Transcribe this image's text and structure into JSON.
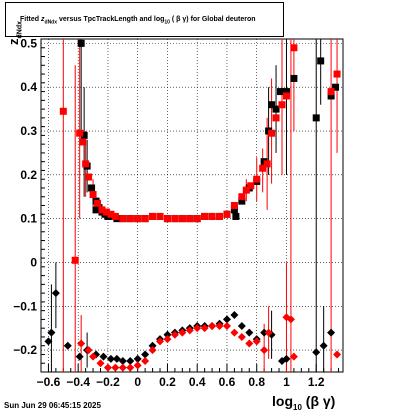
{
  "title": {
    "prefix": "Fitted",
    "z": "z",
    "z_sub": "dNdx",
    "middle": "versus TpcTrackLength and log",
    "log_sub": "10",
    "suffix": "( β γ) for Global deuteron"
  },
  "ylabel": {
    "main": "z",
    "sub": "dNdx"
  },
  "xlabel": {
    "main": "log",
    "sub": "10",
    "rest": "(β γ)"
  },
  "timestamp": "Sun Jun 29 06:45:15 2025",
  "colors": {
    "black_series": "#000000",
    "red_series": "#ff0000",
    "grid": "#000000"
  },
  "chart_data": {
    "type": "scatter",
    "xlim": [
      -0.65,
      1.38
    ],
    "ylim": [
      -0.25,
      0.51
    ],
    "x_ticks": [
      -0.6,
      -0.4,
      -0.2,
      0,
      0.2,
      0.4,
      0.6,
      0.8,
      1,
      1.2
    ],
    "x_tick_labels": [
      "−0.6",
      "−0.4",
      "−0.2",
      "0",
      "0.2",
      "0.4",
      "0.6",
      "0.8",
      "1",
      "1.2"
    ],
    "y_ticks": [
      -0.2,
      -0.1,
      0,
      0.1,
      0.2,
      0.3,
      0.4,
      0.5
    ],
    "y_tick_labels": [
      "−0.2",
      "−0.1",
      "0",
      "0.1",
      "0.2",
      "0.3",
      "0.4",
      "0.5"
    ],
    "grid": true,
    "series": [
      {
        "color": "black",
        "squares": [
          [
            -0.38,
            0.5
          ],
          [
            -0.36,
            0.29
          ],
          [
            -0.34,
            0.22
          ],
          [
            -0.31,
            0.17
          ],
          [
            -0.28,
            0.14
          ],
          [
            -0.26,
            0.125
          ],
          [
            -0.24,
            0.115
          ],
          [
            -0.22,
            0.11
          ],
          [
            -0.2,
            0.105
          ],
          [
            -0.17,
            0.105
          ],
          [
            -0.14,
            0.1
          ],
          [
            -0.1,
            0.1
          ],
          [
            -0.05,
            0.1
          ],
          [
            0.0,
            0.1
          ],
          [
            0.05,
            0.1
          ],
          [
            0.1,
            0.105
          ],
          [
            0.15,
            0.105
          ],
          [
            0.2,
            0.1
          ],
          [
            0.25,
            0.1
          ],
          [
            0.3,
            0.1
          ],
          [
            0.35,
            0.1
          ],
          [
            0.4,
            0.1
          ],
          [
            0.45,
            0.105
          ],
          [
            0.5,
            0.105
          ],
          [
            0.55,
            0.105
          ],
          [
            0.6,
            0.11
          ],
          [
            0.65,
            0.12
          ],
          [
            0.7,
            0.14
          ],
          [
            0.75,
            0.17
          ],
          [
            0.8,
            0.185
          ],
          [
            0.85,
            0.23
          ],
          [
            0.88,
            0.3
          ],
          [
            0.9,
            0.36
          ],
          [
            0.93,
            0.35
          ],
          [
            0.96,
            0.39
          ],
          [
            1.0,
            0.39
          ],
          [
            1.05,
            0.42
          ],
          [
            1.2,
            0.33
          ],
          [
            1.23,
            0.46
          ],
          [
            1.3,
            0.38
          ],
          [
            1.33,
            0.4
          ],
          [
            -0.28,
            0.12
          ],
          [
            0.66,
            0.105
          ]
        ],
        "diamonds": [
          [
            -0.6,
            -0.18
          ],
          [
            -0.58,
            -0.16
          ],
          [
            -0.55,
            -0.07
          ],
          [
            -0.47,
            -0.19
          ],
          [
            -0.39,
            -0.215
          ],
          [
            -0.34,
            -0.2
          ],
          [
            -0.28,
            -0.21
          ],
          [
            -0.23,
            -0.215
          ],
          [
            -0.18,
            -0.22
          ],
          [
            -0.14,
            -0.22
          ],
          [
            -0.1,
            -0.225
          ],
          [
            -0.05,
            -0.225
          ],
          [
            0.0,
            -0.22
          ],
          [
            0.05,
            -0.21
          ],
          [
            0.1,
            -0.19
          ],
          [
            0.15,
            -0.175
          ],
          [
            0.2,
            -0.165
          ],
          [
            0.25,
            -0.16
          ],
          [
            0.3,
            -0.155
          ],
          [
            0.35,
            -0.15
          ],
          [
            0.4,
            -0.145
          ],
          [
            0.45,
            -0.145
          ],
          [
            0.5,
            -0.145
          ],
          [
            0.55,
            -0.14
          ],
          [
            0.6,
            -0.13
          ],
          [
            0.65,
            -0.12
          ],
          [
            0.7,
            -0.145
          ],
          [
            0.75,
            -0.16
          ],
          [
            0.8,
            -0.175
          ],
          [
            0.85,
            -0.16
          ],
          [
            0.9,
            -0.165
          ],
          [
            0.97,
            -0.225
          ],
          [
            1.0,
            -0.22
          ],
          [
            1.2,
            -0.205
          ],
          [
            1.25,
            -0.19
          ],
          [
            1.3,
            -0.16
          ]
        ]
      },
      {
        "color": "red",
        "squares": [
          [
            -0.5,
            0.345
          ],
          [
            -0.42,
            0.005
          ],
          [
            -0.39,
            0.295
          ],
          [
            -0.37,
            0.275
          ],
          [
            -0.35,
            0.225
          ],
          [
            -0.33,
            0.195
          ],
          [
            -0.3,
            0.155
          ],
          [
            -0.27,
            0.135
          ],
          [
            -0.24,
            0.12
          ],
          [
            -0.21,
            0.115
          ],
          [
            -0.18,
            0.11
          ],
          [
            -0.15,
            0.105
          ],
          [
            -0.1,
            0.1
          ],
          [
            -0.05,
            0.1
          ],
          [
            0.0,
            0.1
          ],
          [
            0.05,
            0.1
          ],
          [
            0.1,
            0.105
          ],
          [
            0.15,
            0.105
          ],
          [
            0.2,
            0.1
          ],
          [
            0.25,
            0.1
          ],
          [
            0.3,
            0.1
          ],
          [
            0.35,
            0.1
          ],
          [
            0.4,
            0.1
          ],
          [
            0.45,
            0.105
          ],
          [
            0.5,
            0.105
          ],
          [
            0.55,
            0.105
          ],
          [
            0.6,
            0.11
          ],
          [
            0.65,
            0.13
          ],
          [
            0.7,
            0.15
          ],
          [
            0.73,
            0.165
          ],
          [
            0.76,
            0.175
          ],
          [
            0.8,
            0.19
          ],
          [
            0.84,
            0.215
          ],
          [
            0.87,
            0.225
          ],
          [
            0.9,
            0.295
          ],
          [
            0.93,
            0.33
          ],
          [
            0.97,
            0.36
          ],
          [
            1.0,
            0.38
          ],
          [
            1.05,
            0.49
          ],
          [
            1.3,
            0.39
          ],
          [
            1.34,
            0.43
          ]
        ],
        "diamonds": [
          [
            -0.38,
            -0.185
          ],
          [
            -0.33,
            -0.2
          ],
          [
            -0.3,
            -0.215
          ],
          [
            -0.25,
            -0.23
          ],
          [
            -0.2,
            -0.24
          ],
          [
            -0.15,
            -0.24
          ],
          [
            -0.1,
            -0.24
          ],
          [
            -0.05,
            -0.24
          ],
          [
            0.0,
            -0.235
          ],
          [
            0.05,
            -0.225
          ],
          [
            0.1,
            -0.2
          ],
          [
            0.15,
            -0.18
          ],
          [
            0.2,
            -0.175
          ],
          [
            0.25,
            -0.165
          ],
          [
            0.3,
            -0.16
          ],
          [
            0.35,
            -0.155
          ],
          [
            0.4,
            -0.15
          ],
          [
            0.45,
            -0.15
          ],
          [
            0.5,
            -0.145
          ],
          [
            0.55,
            -0.145
          ],
          [
            0.6,
            -0.145
          ],
          [
            0.65,
            -0.16
          ],
          [
            0.7,
            -0.17
          ],
          [
            0.75,
            -0.185
          ],
          [
            0.8,
            -0.18
          ],
          [
            0.85,
            -0.2
          ],
          [
            0.88,
            -0.16
          ],
          [
            1.0,
            -0.125
          ],
          [
            1.03,
            -0.13
          ],
          [
            1.05,
            -0.215
          ],
          [
            1.34,
            -0.21
          ]
        ]
      }
    ],
    "error_bars": [
      {
        "color": "red",
        "x": -0.5,
        "lo": -0.25,
        "hi": 0.51
      },
      {
        "color": "red",
        "x": -0.42,
        "lo": -0.25,
        "hi": 0.45
      },
      {
        "color": "red",
        "x": -0.39,
        "lo": 0.1,
        "hi": 0.51
      },
      {
        "color": "black",
        "x": -0.38,
        "lo": 0.3,
        "hi": 0.51
      },
      {
        "color": "black",
        "x": -0.36,
        "lo": 0.15,
        "hi": 0.4
      },
      {
        "color": "red",
        "x": -0.35,
        "lo": 0.15,
        "hi": 0.3
      },
      {
        "color": "black",
        "x": -0.34,
        "lo": 0.16,
        "hi": 0.28
      },
      {
        "color": "red",
        "x": -0.3,
        "lo": 0.12,
        "hi": 0.19
      },
      {
        "color": "red",
        "x": 0.73,
        "lo": 0.14,
        "hi": 0.19
      },
      {
        "color": "red",
        "x": 0.8,
        "lo": 0.14,
        "hi": 0.24
      },
      {
        "color": "red",
        "x": 0.84,
        "lo": 0.16,
        "hi": 0.26
      },
      {
        "color": "red",
        "x": 0.87,
        "lo": 0.12,
        "hi": 0.33
      },
      {
        "color": "black",
        "x": 0.88,
        "lo": 0.2,
        "hi": 0.4
      },
      {
        "color": "red",
        "x": 0.9,
        "lo": 0.18,
        "hi": 0.42
      },
      {
        "color": "black",
        "x": 0.93,
        "lo": 0.25,
        "hi": 0.45
      },
      {
        "color": "red",
        "x": 0.97,
        "lo": 0.2,
        "hi": 0.51
      },
      {
        "color": "black",
        "x": 1.0,
        "lo": 0.2,
        "hi": 0.51
      },
      {
        "color": "red",
        "x": 1.03,
        "lo": -0.25,
        "hi": 0.51
      },
      {
        "color": "red",
        "x": 1.05,
        "lo": 0.3,
        "hi": 0.51
      },
      {
        "color": "black",
        "x": 1.2,
        "lo": -0.25,
        "hi": 0.51
      },
      {
        "color": "black",
        "x": 1.23,
        "lo": 0.36,
        "hi": 0.51
      },
      {
        "color": "red",
        "x": 1.3,
        "lo": -0.25,
        "hi": 0.51
      },
      {
        "color": "red",
        "x": 1.34,
        "lo": 0.25,
        "hi": 0.51
      },
      {
        "color": "black",
        "x": -0.58,
        "lo": -0.25,
        "hi": -0.05
      },
      {
        "color": "black",
        "x": -0.55,
        "lo": -0.15,
        "hi": 0.0
      },
      {
        "color": "red",
        "x": -0.38,
        "lo": -0.25,
        "hi": -0.12
      },
      {
        "color": "black",
        "x": -0.34,
        "lo": -0.24,
        "hi": -0.16
      },
      {
        "color": "red",
        "x": 0.85,
        "lo": -0.25,
        "hi": -0.14
      },
      {
        "color": "red",
        "x": 0.88,
        "lo": -0.22,
        "hi": -0.1
      },
      {
        "color": "black",
        "x": 0.9,
        "lo": -0.22,
        "hi": -0.11
      },
      {
        "color": "red",
        "x": 1.0,
        "lo": -0.25,
        "hi": 0.0
      },
      {
        "color": "black",
        "x": 1.25,
        "lo": -0.25,
        "hi": -0.1
      }
    ]
  }
}
